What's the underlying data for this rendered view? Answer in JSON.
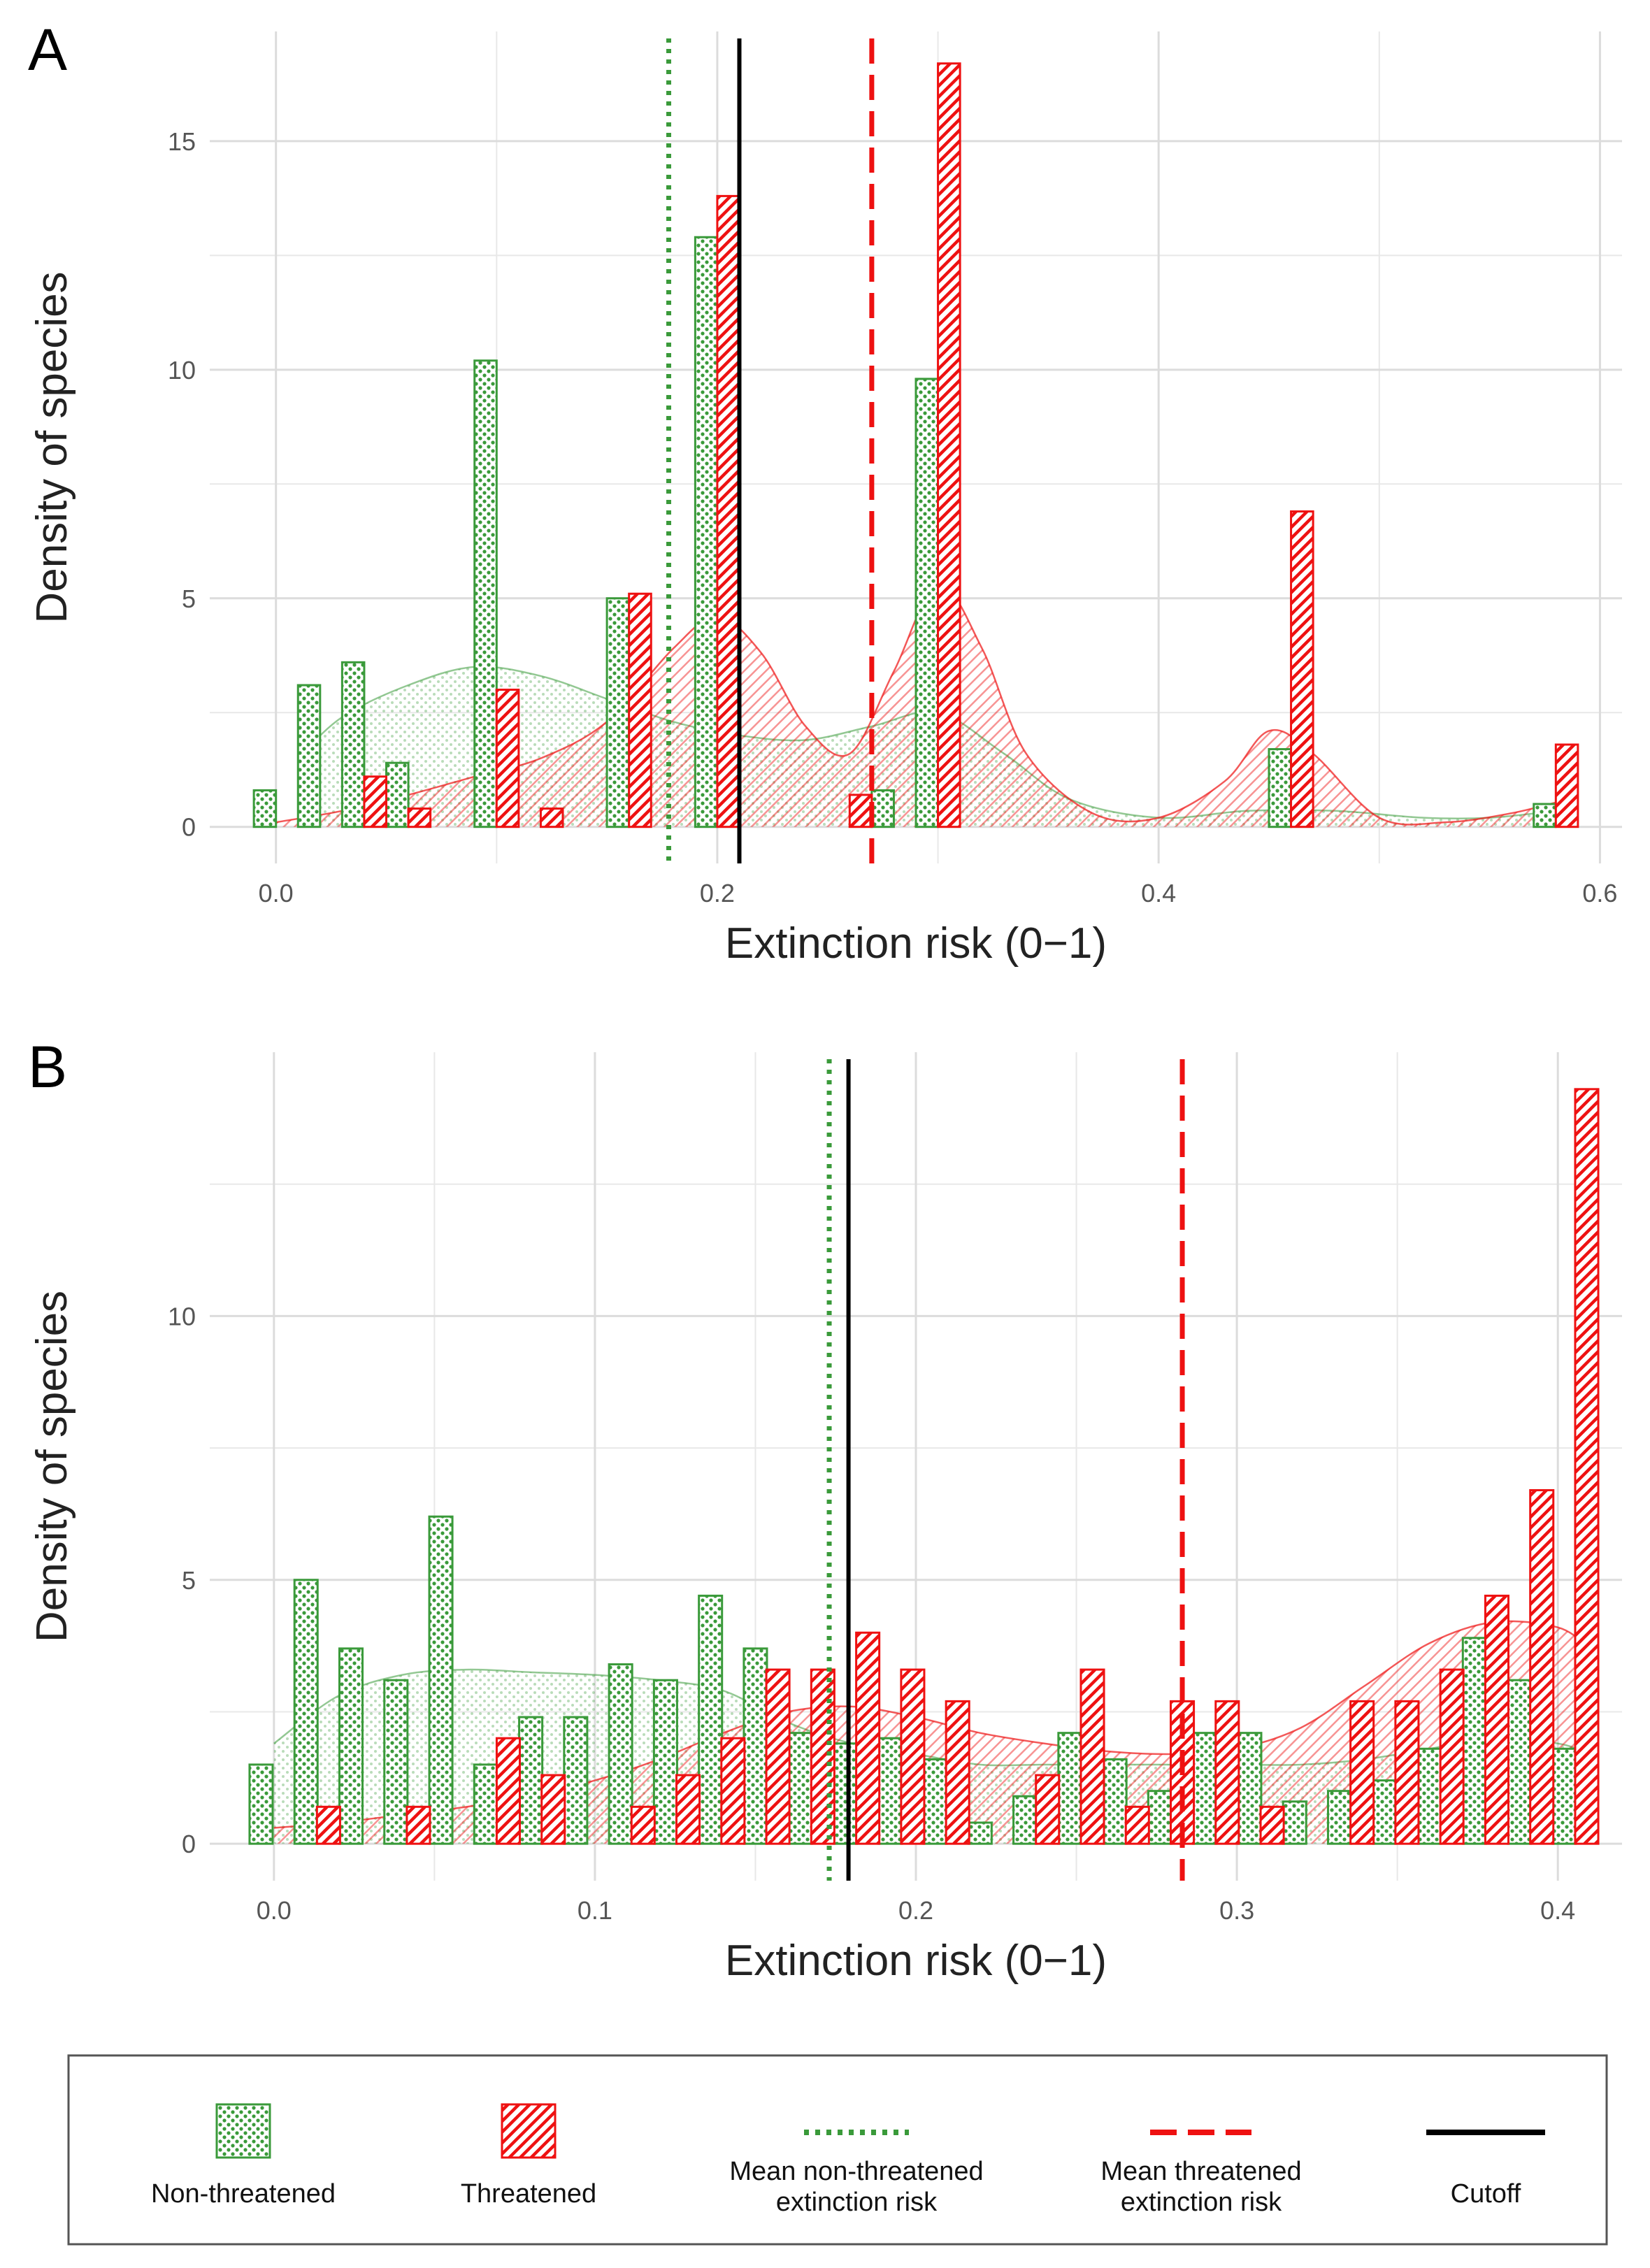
{
  "colors": {
    "non_threatened": "#3a9a3a",
    "threatened": "#ee1111",
    "cutoff": "#000000",
    "grid": "#e8e8e8"
  },
  "chart_data": [
    {
      "panel": "A",
      "type": "bar",
      "xlabel": "Extinction risk (0−1)",
      "ylabel": "Density of species",
      "xlim": [
        -0.03,
        0.61
      ],
      "ylim": [
        -0.8,
        17.4
      ],
      "xticks": [
        0.0,
        0.2,
        0.4,
        0.6
      ],
      "xtick_labels": [
        "0.0",
        "0.2",
        "0.4",
        "0.6"
      ],
      "yticks": [
        0,
        5,
        10,
        15
      ],
      "ytick_labels": [
        "0",
        "5",
        "10",
        "15"
      ],
      "bar_width": 0.01,
      "series": [
        {
          "name": "Non-threatened",
          "x": [
            -0.005,
            0.015,
            0.035,
            0.055,
            0.095,
            0.155,
            0.195,
            0.275,
            0.295,
            0.455,
            0.575
          ],
          "values": [
            0.8,
            3.1,
            3.6,
            1.4,
            10.2,
            5.0,
            12.9,
            0.8,
            9.8,
            1.7,
            0.5
          ]
        },
        {
          "name": "Threatened",
          "x": [
            0.045,
            0.065,
            0.105,
            0.125,
            0.165,
            0.205,
            0.265,
            0.305,
            0.465,
            0.585
          ],
          "values": [
            1.1,
            0.4,
            3.0,
            0.4,
            5.1,
            13.8,
            0.7,
            16.7,
            6.9,
            1.8
          ]
        }
      ],
      "density": [
        {
          "name": "Non-threatened",
          "x": [
            0.01,
            0.03,
            0.06,
            0.09,
            0.12,
            0.15,
            0.18,
            0.21,
            0.24,
            0.27,
            0.3,
            0.33,
            0.36,
            0.4,
            0.44,
            0.48,
            0.52,
            0.55,
            0.58
          ],
          "y": [
            1.5,
            2.4,
            3.1,
            3.5,
            3.3,
            2.8,
            2.3,
            2.0,
            1.9,
            2.2,
            2.5,
            1.6,
            0.6,
            0.2,
            0.35,
            0.35,
            0.2,
            0.2,
            0.35
          ]
        },
        {
          "name": "Threatened",
          "x": [
            0.0,
            0.03,
            0.06,
            0.09,
            0.12,
            0.15,
            0.18,
            0.2,
            0.22,
            0.24,
            0.26,
            0.28,
            0.3,
            0.32,
            0.34,
            0.37,
            0.4,
            0.43,
            0.45,
            0.47,
            0.5,
            0.53,
            0.56,
            0.585
          ],
          "y": [
            0.1,
            0.35,
            0.7,
            1.1,
            1.5,
            2.3,
            3.9,
            4.6,
            3.8,
            2.2,
            1.6,
            3.4,
            5.3,
            3.9,
            1.6,
            0.3,
            0.2,
            1.0,
            2.1,
            1.6,
            0.2,
            0.1,
            0.3,
            0.6
          ]
        }
      ],
      "vlines": {
        "mean_non_threatened": 0.178,
        "cutoff": 0.21,
        "mean_threatened": 0.27
      }
    },
    {
      "panel": "B",
      "type": "bar",
      "xlabel": "Extinction risk (0−1)",
      "ylabel": "Density of species",
      "xlim": [
        -0.02,
        0.42
      ],
      "ylim": [
        -0.7,
        15.0
      ],
      "xticks": [
        0.0,
        0.1,
        0.2,
        0.3,
        0.4
      ],
      "xtick_labels": [
        "0.0",
        "0.1",
        "0.2",
        "0.3",
        "0.4"
      ],
      "yticks": [
        0,
        5,
        10
      ],
      "ytick_labels": [
        "0",
        "5",
        "10"
      ],
      "bar_width": 0.0072,
      "series": [
        {
          "name": "Non-threatened",
          "x": [
            -0.004,
            0.01,
            0.024,
            0.038,
            0.052,
            0.066,
            0.08,
            0.094,
            0.108,
            0.122,
            0.136,
            0.15,
            0.164,
            0.178,
            0.192,
            0.206,
            0.22,
            0.234,
            0.248,
            0.262,
            0.276,
            0.29,
            0.304,
            0.318,
            0.332,
            0.346,
            0.36,
            0.374,
            0.388,
            0.402
          ],
          "values": [
            1.5,
            5.0,
            3.7,
            3.1,
            6.2,
            1.5,
            2.4,
            2.4,
            3.4,
            3.1,
            4.7,
            3.7,
            2.1,
            1.9,
            2.0,
            1.6,
            0.4,
            0.9,
            2.1,
            1.6,
            1.0,
            2.1,
            2.1,
            0.8,
            1.0,
            1.2,
            1.8,
            3.9,
            3.1,
            1.8
          ]
        },
        {
          "name": "Threatened",
          "x": [
            0.017,
            0.045,
            0.073,
            0.087,
            0.115,
            0.129,
            0.143,
            0.157,
            0.171,
            0.185,
            0.199,
            0.213,
            0.241,
            0.255,
            0.269,
            0.283,
            0.297,
            0.311,
            0.339,
            0.353,
            0.367,
            0.381,
            0.395,
            0.409
          ],
          "values": [
            0.7,
            0.7,
            2.0,
            1.3,
            0.7,
            1.3,
            2.0,
            3.3,
            3.3,
            4.0,
            3.3,
            2.7,
            1.3,
            3.3,
            0.7,
            2.7,
            2.7,
            0.7,
            2.7,
            2.7,
            3.3,
            4.7,
            6.7,
            14.3
          ]
        }
      ],
      "density": [
        {
          "name": "Non-threatened",
          "x": [
            0.0,
            0.02,
            0.04,
            0.06,
            0.08,
            0.1,
            0.12,
            0.14,
            0.16,
            0.18,
            0.2,
            0.22,
            0.24,
            0.26,
            0.28,
            0.3,
            0.32,
            0.34,
            0.36,
            0.38,
            0.4,
            0.41
          ],
          "y": [
            1.9,
            2.8,
            3.2,
            3.3,
            3.25,
            3.2,
            3.1,
            2.9,
            2.3,
            1.9,
            1.7,
            1.5,
            1.5,
            1.5,
            1.5,
            1.5,
            1.5,
            1.6,
            1.8,
            2.0,
            1.9,
            1.7
          ]
        },
        {
          "name": "Threatened",
          "x": [
            0.0,
            0.02,
            0.04,
            0.06,
            0.08,
            0.1,
            0.12,
            0.14,
            0.16,
            0.18,
            0.2,
            0.22,
            0.24,
            0.26,
            0.28,
            0.3,
            0.32,
            0.34,
            0.36,
            0.38,
            0.4,
            0.41
          ],
          "y": [
            0.3,
            0.4,
            0.55,
            0.7,
            0.9,
            1.2,
            1.6,
            2.1,
            2.5,
            2.6,
            2.4,
            2.1,
            1.9,
            1.75,
            1.7,
            1.8,
            2.2,
            3.0,
            3.8,
            4.2,
            4.1,
            3.7
          ]
        }
      ],
      "vlines": {
        "mean_non_threatened": 0.173,
        "cutoff": 0.179,
        "mean_threatened": 0.283
      }
    }
  ],
  "legend": {
    "items": [
      {
        "key": "non_threatened",
        "label": "Non-threatened"
      },
      {
        "key": "threatened",
        "label": "Threatened"
      },
      {
        "key": "mean_non_threatened",
        "label_line1": "Mean non-threatened",
        "label_line2": "extinction risk"
      },
      {
        "key": "mean_threatened",
        "label_line1": "Mean threatened",
        "label_line2": "extinction risk"
      },
      {
        "key": "cutoff",
        "label": "Cutoff"
      }
    ]
  }
}
